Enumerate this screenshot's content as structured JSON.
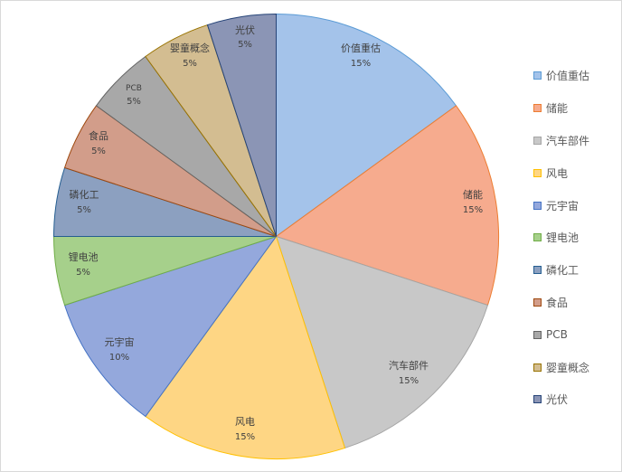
{
  "chart_data": {
    "type": "pie",
    "title": "",
    "slices": [
      {
        "label": "价值重估",
        "value": 15,
        "pct_label": "15%",
        "color": "#a4c3ea",
        "edge": "#5b9bd5"
      },
      {
        "label": "储能",
        "value": 15,
        "pct_label": "15%",
        "color": "#f6ab8e",
        "edge": "#ed7d31"
      },
      {
        "label": "汽车部件",
        "value": 15,
        "pct_label": "15%",
        "color": "#c8c8c8",
        "edge": "#a5a5a5"
      },
      {
        "label": "风电",
        "value": 15,
        "pct_label": "15%",
        "color": "#fed684",
        "edge": "#ffc000"
      },
      {
        "label": "元宇宙",
        "value": 10,
        "pct_label": "10%",
        "color": "#94a8dc",
        "edge": "#4472c4"
      },
      {
        "label": "锂电池",
        "value": 5,
        "pct_label": "5%",
        "color": "#a6d08b",
        "edge": "#70ad47"
      },
      {
        "label": "磷化工",
        "value": 5,
        "pct_label": "5%",
        "color": "#8ca0c0",
        "edge": "#255e91"
      },
      {
        "label": "食品",
        "value": 5,
        "pct_label": "5%",
        "color": "#d29d8a",
        "edge": "#9e480e"
      },
      {
        "label": "PCB",
        "value": 5,
        "pct_label": "5%",
        "color": "#a8a8a8",
        "edge": "#636363"
      },
      {
        "label": "婴童概念",
        "value": 5,
        "pct_label": "5%",
        "color": "#d3bd91",
        "edge": "#997300"
      },
      {
        "label": "光伏",
        "value": 5,
        "pct_label": "5%",
        "color": "#8b95b5",
        "edge": "#264478"
      }
    ],
    "legend_position": "right"
  }
}
